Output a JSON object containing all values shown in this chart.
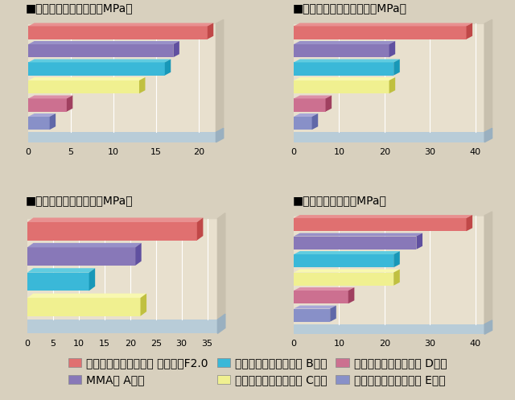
{
  "charts": [
    {
      "title": "■人歯象牙質接着強さ（MPa）",
      "values": [
        21,
        17,
        16,
        13,
        4.5,
        2.5
      ],
      "xlim": [
        0,
        22
      ],
      "xticks": [
        0,
        5,
        10,
        15,
        20
      ],
      "n_bars": 6
    },
    {
      "title": "■人歯エナメル接着強さ（MPa）",
      "values": [
        38,
        21,
        22,
        21,
        7,
        4
      ],
      "xlim": [
        0,
        42
      ],
      "xticks": [
        0,
        10,
        20,
        30,
        40
      ],
      "n_bars": 6
    },
    {
      "title": "■ポーセレン接着強さ（MPa）",
      "values": [
        33,
        21,
        12,
        22,
        null,
        null
      ],
      "xlim": [
        0,
        37
      ],
      "xticks": [
        0,
        5,
        10,
        15,
        20,
        25,
        30,
        35
      ],
      "n_bars": 4
    },
    {
      "title": "■金パラ接着強さ（MPa）",
      "values": [
        38,
        27,
        22,
        22,
        12,
        8
      ],
      "xlim": [
        0,
        42
      ],
      "xticks": [
        0,
        10,
        20,
        30,
        40
      ],
      "n_bars": 6
    }
  ],
  "bar_colors": [
    "#e07070",
    "#8878b8",
    "#3ab8d8",
    "#f0f090",
    "#cc7090",
    "#8890c8"
  ],
  "bar_top_colors": [
    "#e89090",
    "#9890c8",
    "#60cce0",
    "#f8f8b0",
    "#dc90a8",
    "#a8a8d8"
  ],
  "bar_right_colors": [
    "#c04848",
    "#6050a0",
    "#1898b8",
    "#c0c040",
    "#a04060",
    "#6068a8"
  ],
  "wall_color": "#e8e0ce",
  "wall_dark_color": "#d8d0be",
  "floor_color": "#b8ccd8",
  "bg_color": "#d8d0be",
  "grid_color": "#ffffff",
  "title_fontsize": 9,
  "tick_fontsize": 8,
  "legend_fontsize": 8,
  "legend_items": [
    [
      "コンポジットレジン系 パナビアF2.0",
      "#e07070"
    ],
    [
      "MMA系 A製品",
      "#8878b8"
    ],
    [
      "コンポジットレジン系 B製品",
      "#3ab8d8"
    ],
    [
      "コンポジットレジン系 C製品",
      "#f0f090"
    ],
    [
      "グラスアイオノマー系 D製品",
      "#cc7090"
    ],
    [
      "グラスアイオノマー系 E製品",
      "#8890c8"
    ]
  ]
}
